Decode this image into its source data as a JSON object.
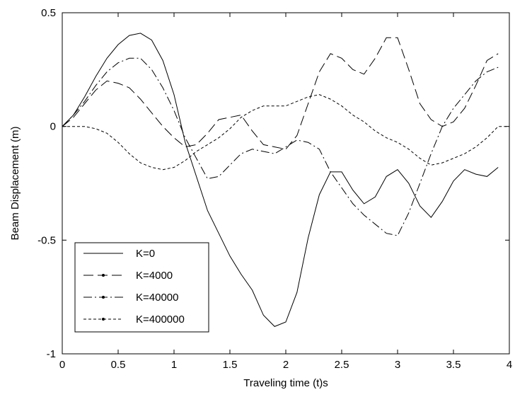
{
  "chart_data": {
    "type": "line",
    "title": "",
    "xlabel": "Traveling time (t)s",
    "ylabel": "Beam Displacement (m)",
    "xlim": [
      0,
      4
    ],
    "ylim": [
      -1,
      0.5
    ],
    "xticks": [
      "0",
      "0.5",
      "1",
      "1.5",
      "2",
      "2.5",
      "3",
      "3.5",
      "4"
    ],
    "yticks": [
      "0.5",
      "0",
      "-0.5",
      "-1"
    ],
    "grid": false,
    "legend_position": "bottom-left",
    "series": [
      {
        "name": "K=0",
        "style": "solid",
        "x": [
          0,
          0.1,
          0.2,
          0.3,
          0.4,
          0.5,
          0.6,
          0.7,
          0.8,
          0.9,
          1.0,
          1.1,
          1.2,
          1.3,
          1.4,
          1.5,
          1.6,
          1.7,
          1.8,
          1.9,
          2.0,
          2.1,
          2.2,
          2.3,
          2.4,
          2.5,
          2.6,
          2.7,
          2.8,
          2.9,
          3.0,
          3.1,
          3.2,
          3.3,
          3.4,
          3.5,
          3.6,
          3.7,
          3.8,
          3.9
        ],
        "y": [
          0,
          0.05,
          0.13,
          0.22,
          0.3,
          0.36,
          0.4,
          0.41,
          0.38,
          0.29,
          0.14,
          -0.07,
          -0.22,
          -0.37,
          -0.47,
          -0.57,
          -0.65,
          -0.72,
          -0.83,
          -0.88,
          -0.86,
          -0.73,
          -0.49,
          -0.3,
          -0.2,
          -0.2,
          -0.28,
          -0.34,
          -0.31,
          -0.22,
          -0.19,
          -0.25,
          -0.35,
          -0.4,
          -0.33,
          -0.24,
          -0.19,
          -0.21,
          -0.22,
          -0.18
        ]
      },
      {
        "name": "K=4000",
        "style": "longdash",
        "x": [
          0,
          0.1,
          0.2,
          0.3,
          0.4,
          0.5,
          0.6,
          0.7,
          0.8,
          0.9,
          1.0,
          1.1,
          1.2,
          1.3,
          1.4,
          1.5,
          1.6,
          1.7,
          1.8,
          1.9,
          2.0,
          2.1,
          2.2,
          2.3,
          2.4,
          2.5,
          2.6,
          2.7,
          2.8,
          2.9,
          3.0,
          3.1,
          3.2,
          3.3,
          3.4,
          3.5,
          3.6,
          3.7,
          3.8,
          3.9
        ],
        "y": [
          0,
          0.04,
          0.1,
          0.16,
          0.2,
          0.19,
          0.17,
          0.12,
          0.06,
          0.0,
          -0.05,
          -0.09,
          -0.08,
          -0.03,
          0.03,
          0.04,
          0.05,
          -0.02,
          -0.08,
          -0.09,
          -0.1,
          -0.04,
          0.1,
          0.24,
          0.32,
          0.3,
          0.25,
          0.23,
          0.3,
          0.39,
          0.39,
          0.25,
          0.1,
          0.03,
          0.0,
          0.02,
          0.08,
          0.18,
          0.29,
          0.32
        ]
      },
      {
        "name": "K=40000",
        "style": "dashdot",
        "x": [
          0,
          0.1,
          0.2,
          0.3,
          0.4,
          0.5,
          0.6,
          0.7,
          0.8,
          0.9,
          1.0,
          1.1,
          1.2,
          1.3,
          1.4,
          1.5,
          1.6,
          1.7,
          1.8,
          1.9,
          2.0,
          2.1,
          2.2,
          2.3,
          2.4,
          2.5,
          2.6,
          2.7,
          2.8,
          2.9,
          3.0,
          3.1,
          3.2,
          3.3,
          3.4,
          3.5,
          3.6,
          3.7,
          3.8,
          3.9
        ],
        "y": [
          0,
          0.05,
          0.11,
          0.18,
          0.24,
          0.28,
          0.3,
          0.3,
          0.25,
          0.17,
          0.07,
          -0.05,
          -0.14,
          -0.23,
          -0.22,
          -0.17,
          -0.12,
          -0.1,
          -0.11,
          -0.12,
          -0.09,
          -0.06,
          -0.07,
          -0.1,
          -0.2,
          -0.27,
          -0.34,
          -0.39,
          -0.43,
          -0.47,
          -0.48,
          -0.38,
          -0.25,
          -0.12,
          0.0,
          0.08,
          0.14,
          0.2,
          0.24,
          0.26
        ]
      },
      {
        "name": "K=400000",
        "style": "shortdash",
        "x": [
          0,
          0.1,
          0.2,
          0.3,
          0.4,
          0.5,
          0.6,
          0.7,
          0.8,
          0.9,
          1.0,
          1.1,
          1.2,
          1.3,
          1.4,
          1.5,
          1.6,
          1.7,
          1.8,
          1.9,
          2.0,
          2.1,
          2.2,
          2.3,
          2.4,
          2.5,
          2.6,
          2.7,
          2.8,
          2.9,
          3.0,
          3.1,
          3.2,
          3.3,
          3.4,
          3.5,
          3.6,
          3.7,
          3.8,
          3.9,
          4.0
        ],
        "y": [
          0,
          0.0,
          0.0,
          -0.01,
          -0.03,
          -0.07,
          -0.12,
          -0.16,
          -0.18,
          -0.19,
          -0.18,
          -0.15,
          -0.11,
          -0.08,
          -0.05,
          -0.01,
          0.04,
          0.07,
          0.09,
          0.09,
          0.09,
          0.11,
          0.13,
          0.14,
          0.12,
          0.09,
          0.05,
          0.02,
          -0.02,
          -0.05,
          -0.07,
          -0.1,
          -0.14,
          -0.17,
          -0.16,
          -0.14,
          -0.12,
          -0.09,
          -0.05,
          0.0,
          0.0
        ]
      }
    ]
  }
}
